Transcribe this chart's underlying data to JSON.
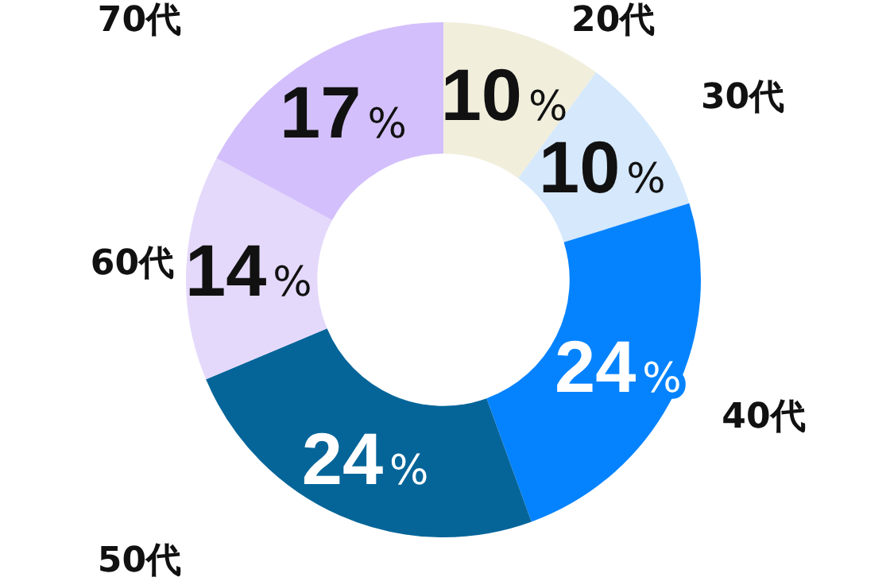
{
  "chart_data": {
    "type": "donut",
    "categories": [
      "20代",
      "30代",
      "40代",
      "50代",
      "60代",
      "70代"
    ],
    "values": [
      10,
      10,
      24,
      24,
      14,
      17
    ],
    "value_labels": [
      "10%",
      "10%",
      "24%",
      "24%",
      "14%",
      "17%"
    ],
    "colors": [
      "#f1eedc",
      "#d5e8fc",
      "#0583ff",
      "#056599",
      "#e5d9fb",
      "#d3bffc"
    ],
    "legend": false
  }
}
